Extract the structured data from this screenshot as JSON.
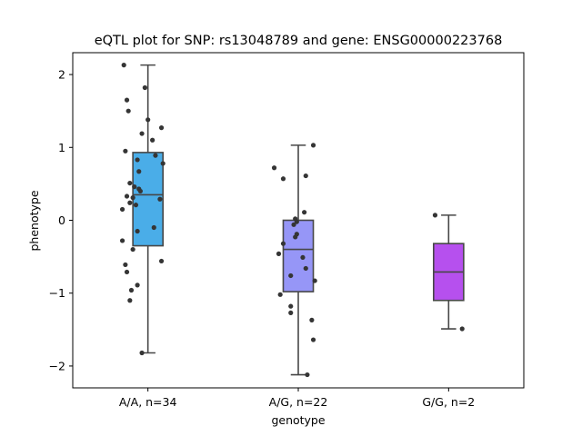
{
  "chart_data": {
    "type": "box",
    "title": "eQTL plot for SNP: rs13048789 and gene: ENSG00000223768",
    "xlabel": "genotype",
    "ylabel": "phenotype",
    "ylim": [
      -2.3,
      2.3
    ],
    "yticks": [
      2,
      1,
      0,
      -1,
      -2
    ],
    "ytick_labels": [
      "2",
      "1",
      "0",
      "−1",
      "−2"
    ],
    "grid": false,
    "categories": [
      "A/A, n=34",
      "A/G, n=22",
      "G/G, n=2"
    ],
    "groups": [
      {
        "label": "A/A, n=34",
        "color": "#4aade8",
        "box": {
          "whisker_low": -1.82,
          "q1": -0.35,
          "median": 0.35,
          "q3": 0.93,
          "whisker_high": 2.13
        },
        "points": [
          [
            -0.16,
            2.13
          ],
          [
            -0.02,
            1.82
          ],
          [
            -0.14,
            1.65
          ],
          [
            -0.13,
            1.5
          ],
          [
            0.0,
            1.38
          ],
          [
            0.09,
            1.27
          ],
          [
            -0.04,
            1.19
          ],
          [
            0.03,
            1.1
          ],
          [
            -0.15,
            0.95
          ],
          [
            0.05,
            0.89
          ],
          [
            -0.07,
            0.83
          ],
          [
            0.1,
            0.78
          ],
          [
            -0.06,
            0.67
          ],
          [
            -0.12,
            0.51
          ],
          [
            -0.09,
            0.46
          ],
          [
            -0.06,
            0.43
          ],
          [
            -0.05,
            0.4
          ],
          [
            -0.14,
            0.33
          ],
          [
            -0.1,
            0.31
          ],
          [
            0.08,
            0.29
          ],
          [
            -0.12,
            0.24
          ],
          [
            -0.08,
            0.21
          ],
          [
            -0.17,
            0.15
          ],
          [
            0.04,
            -0.1
          ],
          [
            -0.07,
            -0.15
          ],
          [
            -0.17,
            -0.28
          ],
          [
            -0.1,
            -0.4
          ],
          [
            0.09,
            -0.56
          ],
          [
            -0.15,
            -0.61
          ],
          [
            -0.14,
            -0.71
          ],
          [
            -0.07,
            -0.89
          ],
          [
            -0.11,
            -0.96
          ],
          [
            -0.12,
            -1.1
          ],
          [
            -0.04,
            -1.82
          ]
        ]
      },
      {
        "label": "A/G, n=22",
        "color": "#9696f7",
        "box": {
          "whisker_low": -2.12,
          "q1": -0.98,
          "median": -0.4,
          "q3": 0.0,
          "whisker_high": 1.03
        },
        "points": [
          [
            0.1,
            1.03
          ],
          [
            -0.16,
            0.72
          ],
          [
            -0.1,
            0.57
          ],
          [
            0.05,
            0.61
          ],
          [
            0.04,
            0.11
          ],
          [
            -0.02,
            0.02
          ],
          [
            -0.01,
            -0.02
          ],
          [
            -0.03,
            -0.06
          ],
          [
            -0.01,
            -0.19
          ],
          [
            -0.02,
            -0.23
          ],
          [
            -0.1,
            -0.32
          ],
          [
            -0.13,
            -0.46
          ],
          [
            0.03,
            -0.51
          ],
          [
            0.05,
            -0.66
          ],
          [
            -0.05,
            -0.76
          ],
          [
            0.11,
            -0.83
          ],
          [
            -0.12,
            -1.02
          ],
          [
            -0.05,
            -1.18
          ],
          [
            -0.05,
            -1.27
          ],
          [
            0.09,
            -1.37
          ],
          [
            0.1,
            -1.64
          ],
          [
            0.06,
            -2.12
          ]
        ]
      },
      {
        "label": "G/G, n=2",
        "color": "#b650ee",
        "box": {
          "whisker_low": -1.49,
          "q1": -1.1,
          "median": -0.71,
          "q3": -0.32,
          "whisker_high": 0.07
        },
        "points": [
          [
            -0.09,
            0.07
          ],
          [
            0.09,
            -1.49
          ]
        ]
      }
    ]
  }
}
